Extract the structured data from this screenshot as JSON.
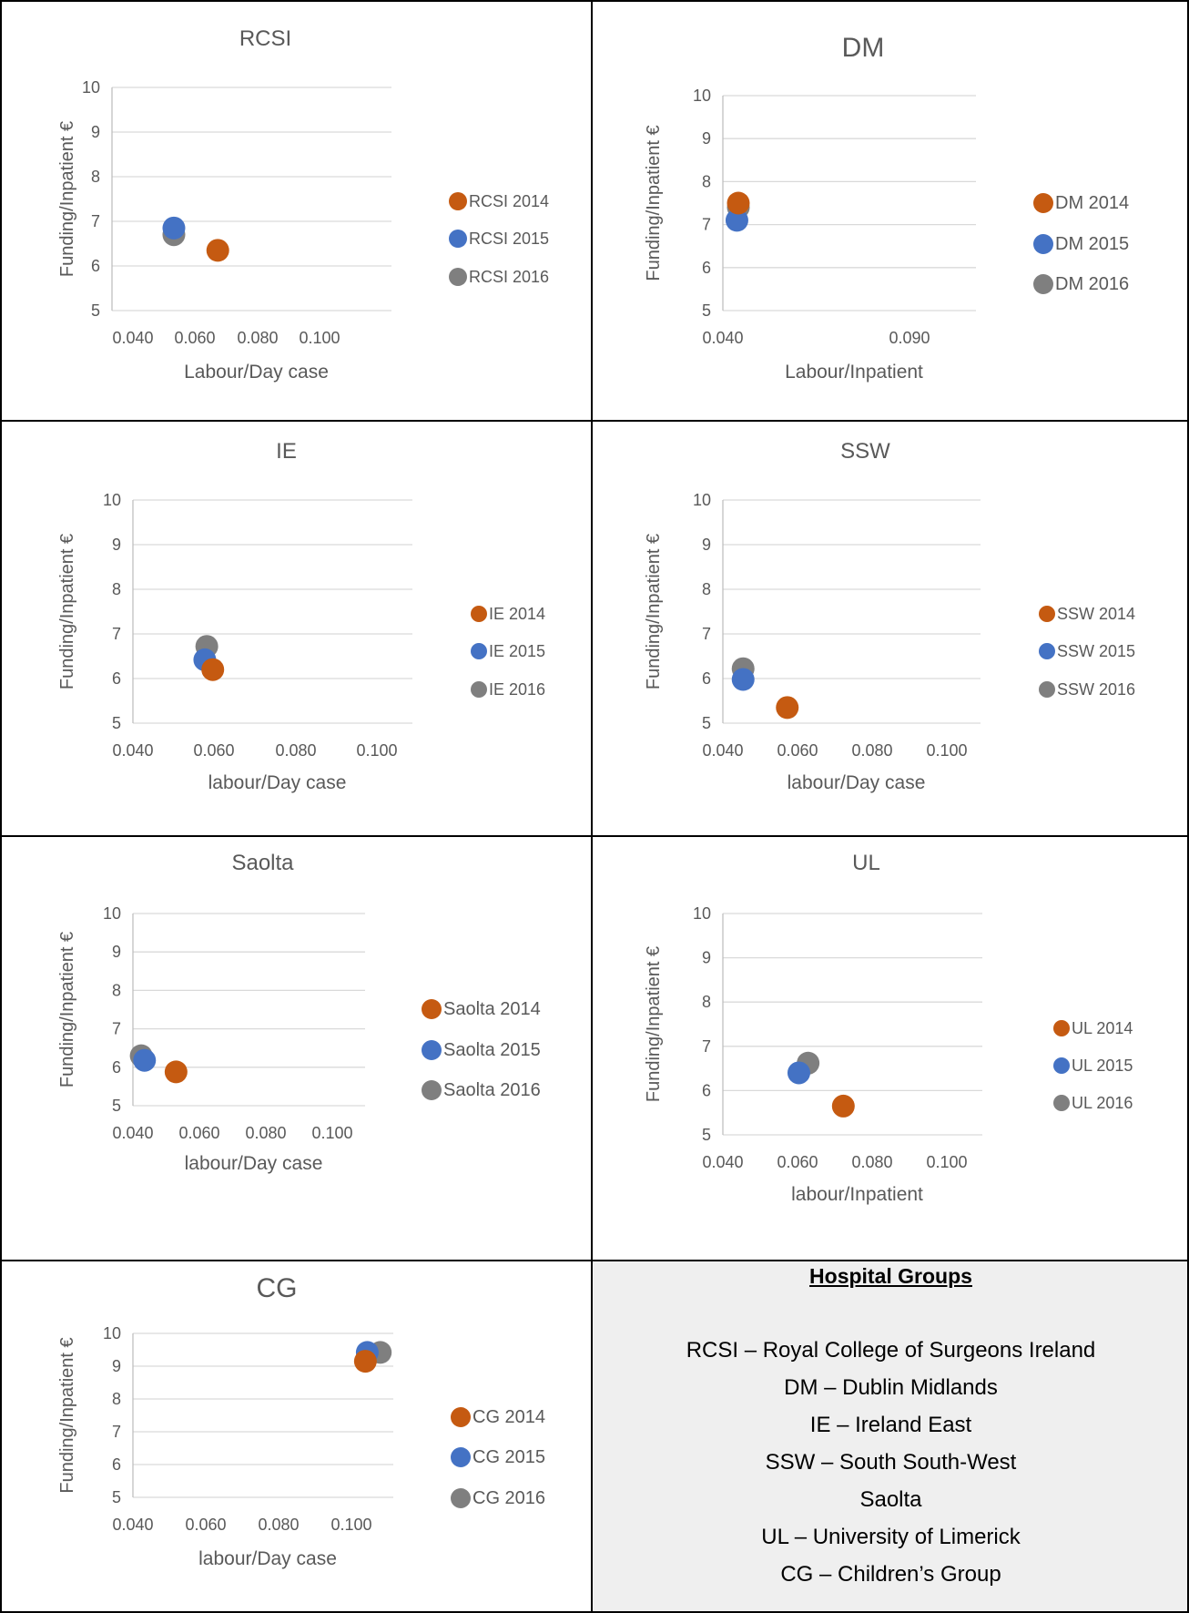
{
  "charts": [
    {
      "id": "rcsi",
      "chart_data": {
        "type": "scatter",
        "title": "RCSI",
        "xlabel": "Labour/Day case",
        "ylabel": "Funding/Inpatient €",
        "xlim": [
          0.04,
          0.11
        ],
        "ylim": [
          5,
          10
        ],
        "xticks": [
          "0.040",
          "0.060",
          "0.080",
          "0.100"
        ],
        "yticks": [
          "5",
          "6",
          "7",
          "8",
          "9",
          "10"
        ],
        "series": [
          {
            "name": "RCSI 2014",
            "color": "#c55a11",
            "points": [
              {
                "x": 0.0665,
                "y": 6.35
              }
            ]
          },
          {
            "name": "RCSI 2015",
            "color": "#4472c4",
            "points": [
              {
                "x": 0.0555,
                "y": 6.85
              }
            ]
          },
          {
            "name": "RCSI 2016",
            "color": "#7f7f7f",
            "points": [
              {
                "x": 0.0555,
                "y": 6.7
              }
            ]
          }
        ]
      }
    },
    {
      "id": "dm",
      "chart_data": {
        "type": "scatter",
        "title": "DM",
        "xlabel": "Labour/Inpatient",
        "ylabel": "Funding/Inpatient €",
        "xlim": [
          0.04,
          0.13
        ],
        "ylim": [
          5,
          10
        ],
        "xticks": [
          "0.040",
          "0.090"
        ],
        "yticks": [
          "5",
          "6",
          "7",
          "8",
          "9",
          "10"
        ],
        "series": [
          {
            "name": "DM 2014",
            "color": "#c55a11",
            "points": [
              {
                "x": 0.0455,
                "y": 7.5
              }
            ]
          },
          {
            "name": "DM 2015",
            "color": "#4472c4",
            "points": [
              {
                "x": 0.045,
                "y": 7.1
              }
            ]
          },
          {
            "name": "DM 2016",
            "color": "#7f7f7f",
            "points": [
              {
                "x": 0.0455,
                "y": 7.4
              }
            ]
          }
        ]
      }
    },
    {
      "id": "ie",
      "chart_data": {
        "type": "scatter",
        "title": "IE",
        "xlabel": "labour/Day case",
        "ylabel": "Funding/Inpatient €",
        "xlim": [
          0.04,
          0.11
        ],
        "ylim": [
          5,
          10
        ],
        "xticks": [
          "0.040",
          "0.060",
          "0.080",
          "0.100"
        ],
        "yticks": [
          "5",
          "6",
          "7",
          "8",
          "9",
          "10"
        ],
        "series": [
          {
            "name": "IE 2014",
            "color": "#c55a11",
            "points": [
              {
                "x": 0.06,
                "y": 6.2
              }
            ]
          },
          {
            "name": "IE 2015",
            "color": "#4472c4",
            "points": [
              {
                "x": 0.058,
                "y": 6.42
              }
            ]
          },
          {
            "name": "IE 2016",
            "color": "#7f7f7f",
            "points": [
              {
                "x": 0.0585,
                "y": 6.72
              }
            ]
          }
        ]
      }
    },
    {
      "id": "ssw",
      "chart_data": {
        "type": "scatter",
        "title": "SSW",
        "xlabel": "labour/Day case",
        "ylabel": "Funding/Inpatient €",
        "xlim": [
          0.04,
          0.11
        ],
        "ylim": [
          5,
          10
        ],
        "xticks": [
          "0.040",
          "0.060",
          "0.080",
          "0.100"
        ],
        "yticks": [
          "5",
          "6",
          "7",
          "8",
          "9",
          "10"
        ],
        "series": [
          {
            "name": "SSW 2014",
            "color": "#c55a11",
            "points": [
              {
                "x": 0.0575,
                "y": 5.35
              }
            ]
          },
          {
            "name": "SSW 2015",
            "color": "#4472c4",
            "points": [
              {
                "x": 0.0455,
                "y": 5.98
              }
            ]
          },
          {
            "name": "SSW 2016",
            "color": "#7f7f7f",
            "points": [
              {
                "x": 0.0455,
                "y": 6.22
              }
            ]
          }
        ]
      }
    },
    {
      "id": "saolta",
      "chart_data": {
        "type": "scatter",
        "title": "Saolta",
        "xlabel": "labour/Day case",
        "ylabel": "Funding/Inpatient €",
        "xlim": [
          0.04,
          0.11
        ],
        "ylim": [
          5,
          10
        ],
        "xticks": [
          "0.040",
          "0.060",
          "0.080",
          "0.100"
        ],
        "yticks": [
          "5",
          "6",
          "7",
          "8",
          "9",
          "10"
        ],
        "series": [
          {
            "name": "Saolta 2014",
            "color": "#c55a11",
            "points": [
              {
                "x": 0.053,
                "y": 5.88
              }
            ]
          },
          {
            "name": "Saolta 2015",
            "color": "#4472c4",
            "points": [
              {
                "x": 0.0435,
                "y": 6.18
              }
            ]
          },
          {
            "name": "Saolta 2016",
            "color": "#7f7f7f",
            "points": [
              {
                "x": 0.0425,
                "y": 6.3
              }
            ]
          }
        ]
      }
    },
    {
      "id": "ul",
      "chart_data": {
        "type": "scatter",
        "title": "UL",
        "xlabel": "labour/Inpatient",
        "ylabel": "Funding/Inpatient €",
        "xlim": [
          0.04,
          0.11
        ],
        "ylim": [
          5,
          10
        ],
        "xticks": [
          "0.040",
          "0.060",
          "0.080",
          "0.100"
        ],
        "yticks": [
          "5",
          "6",
          "7",
          "8",
          "9",
          "10"
        ],
        "series": [
          {
            "name": "UL 2014",
            "color": "#c55a11",
            "points": [
              {
                "x": 0.0725,
                "y": 5.65
              }
            ]
          },
          {
            "name": "UL 2015",
            "color": "#4472c4",
            "points": [
              {
                "x": 0.0605,
                "y": 6.4
              }
            ]
          },
          {
            "name": "UL 2016",
            "color": "#7f7f7f",
            "points": [
              {
                "x": 0.063,
                "y": 6.62
              }
            ]
          }
        ]
      }
    },
    {
      "id": "cg",
      "chart_data": {
        "type": "scatter",
        "title": "CG",
        "xlabel": "labour/Day case",
        "ylabel": "Funding/Inpatient €",
        "xlim": [
          0.04,
          0.11
        ],
        "ylim": [
          5,
          10
        ],
        "xticks": [
          "0.040",
          "0.060",
          "0.080",
          "0.100"
        ],
        "yticks": [
          "5",
          "6",
          "7",
          "8",
          "9",
          "10"
        ],
        "series": [
          {
            "name": "CG 2014",
            "color": "#c55a11",
            "points": [
              {
                "x": 0.1025,
                "y": 9.15
              }
            ]
          },
          {
            "name": "CG 2015",
            "color": "#4472c4",
            "points": [
              {
                "x": 0.103,
                "y": 9.42
              }
            ]
          },
          {
            "name": "CG 2016",
            "color": "#7f7f7f",
            "points": [
              {
                "x": 0.1065,
                "y": 9.42
              }
            ]
          }
        ]
      }
    }
  ],
  "legend": {
    "title": "Hospital Groups",
    "items": [
      "RCSI – Royal College of Surgeons Ireland",
      "DM – Dublin Midlands",
      "IE – Ireland East",
      "SSW – South South-West",
      "Saolta",
      "UL – University of Limerick",
      "CG – Children’s Group"
    ]
  }
}
